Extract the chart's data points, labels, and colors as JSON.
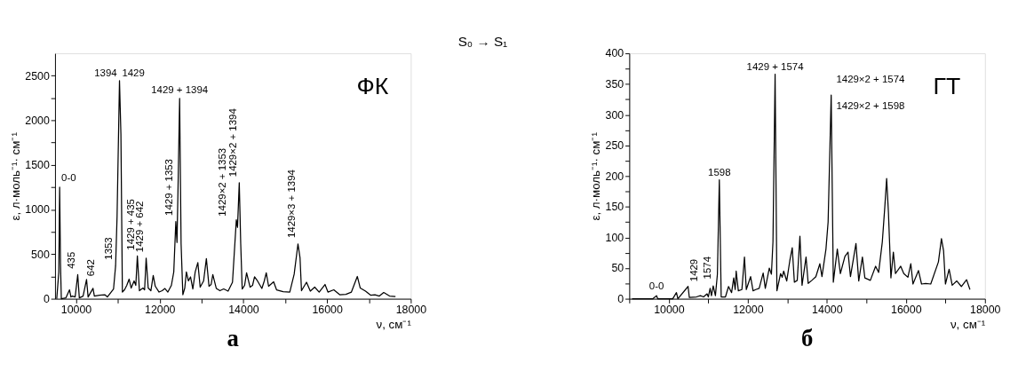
{
  "chart_data": [
    {
      "type": "line",
      "xlabel": "ν, см⁻¹",
      "ylabel": "ε, л·моль⁻¹· см⁻¹",
      "xlim": [
        9500,
        18000
      ],
      "ylim": [
        0,
        2750
      ],
      "xticks": [
        10000,
        {
          "value": 11000,
          "label": null
        },
        12000,
        {
          "value": 13000,
          "label": null
        },
        14000,
        {
          "value": 15000,
          "label": null
        },
        16000,
        {
          "value": 17000,
          "label": null
        },
        18000
      ],
      "yticks": [
        0,
        {
          "value": 250,
          "label": null
        },
        500,
        {
          "value": 750,
          "label": null
        },
        1000,
        {
          "value": 1250,
          "label": null
        },
        1500,
        {
          "value": 1750,
          "label": null
        },
        2000,
        {
          "value": 2250,
          "label": null
        },
        2500
      ],
      "x": [
        9540,
        9590,
        9610,
        9630,
        9650,
        9760,
        9846,
        9880,
        9916,
        9980,
        10042,
        10080,
        10170,
        10253,
        10290,
        10407,
        10440,
        10560,
        10688,
        10750,
        10898,
        10947,
        10982,
        11040,
        11074,
        11109,
        11160,
        11214,
        11270,
        11319,
        11389,
        11430,
        11467,
        11516,
        11600,
        11640,
        11677,
        11726,
        11790,
        11846,
        11895,
        11986,
        12060,
        12126,
        12196,
        12280,
        12337,
        12386,
        12414,
        12442,
        12477,
        12512,
        12554,
        12600,
        12638,
        12688,
        12737,
        12793,
        12849,
        12912,
        12968,
        13050,
        13116,
        13179,
        13230,
        13270,
        13354,
        13440,
        13530,
        13635,
        13740,
        13832,
        13860,
        13902,
        13937,
        13972,
        14030,
        14077,
        14161,
        14220,
        14267,
        14337,
        14442,
        14500,
        14547,
        14603,
        14723,
        14793,
        14950,
        15109,
        15214,
        15305,
        15354,
        15389,
        15509,
        15600,
        15705,
        15811,
        15951,
        16021,
        16161,
        16302,
        16450,
        16582,
        16723,
        16793,
        16919,
        17040,
        17144,
        17250,
        17354,
        17494,
        17635
      ],
      "series": [
        {
          "color": "#000000",
          "values": [
            0,
            300,
            1250,
            400,
            0,
            10,
            100,
            20,
            30,
            20,
            270,
            10,
            30,
            215,
            20,
            117,
            30,
            40,
            45,
            20,
            110,
            370,
            920,
            2445,
            1845,
            75,
            100,
            150,
            220,
            120,
            200,
            150,
            480,
            90,
            120,
            100,
            455,
            120,
            90,
            260,
            140,
            75,
            90,
            115,
            75,
            150,
            300,
            865,
            630,
            1320,
            2245,
            615,
            45,
            120,
            300,
            200,
            245,
            110,
            300,
            405,
            130,
            200,
            450,
            140,
            160,
            270,
            115,
            90,
            110,
            85,
            185,
            885,
            800,
            1300,
            615,
            110,
            150,
            290,
            130,
            150,
            245,
            200,
            115,
            200,
            290,
            140,
            190,
            100,
            80,
            75,
            275,
            615,
            460,
            90,
            185,
            85,
            130,
            75,
            160,
            75,
            100,
            45,
            50,
            75,
            250,
            120,
            85,
            40,
            45,
            30,
            70,
            30,
            25
          ]
        }
      ],
      "annotations": [
        {
          "text": "0-0",
          "x": 9610,
          "y": 1250
        },
        {
          "text": "435",
          "x": 10042,
          "y": 270
        },
        {
          "text": "642",
          "x": 10253,
          "y": 215
        },
        {
          "text": "1353",
          "x": 10947,
          "y": 370
        },
        {
          "text": "1394",
          "x": 11040,
          "y": 2445
        },
        {
          "text": "1429",
          "x": 11040,
          "y": 2445
        },
        {
          "text": "1429 + 1394",
          "x": 12477,
          "y": 2245
        },
        {
          "text": "1429 + 435",
          "x": 11467,
          "y": 480
        },
        {
          "text": "1429 + 642",
          "x": 11677,
          "y": 455
        },
        {
          "text": "1429 + 1353",
          "x": 12386,
          "y": 865
        },
        {
          "text": "1429×2 + 1353",
          "x": 13832,
          "y": 885
        },
        {
          "text": "1429×2 + 1394",
          "x": 13902,
          "y": 1300
        },
        {
          "text": "1429×3 + 1394",
          "x": 15305,
          "y": 615
        },
        "ФК",
        "а",
        "S₀ → S₁"
      ]
    },
    {
      "type": "line",
      "xlabel": "ν, см⁻¹",
      "ylabel": "ε, л·моль⁻¹· см⁻¹",
      "xlim": [
        9000,
        18000
      ],
      "ylim": [
        0,
        400
      ],
      "xticks": [
        {
          "value": 9000,
          "label": null
        },
        10000,
        {
          "value": 11000,
          "label": null
        },
        12000,
        {
          "value": 13000,
          "label": null
        },
        14000,
        {
          "value": 15000,
          "label": null
        },
        16000,
        {
          "value": 17000,
          "label": null
        },
        18000
      ],
      "yticks": [
        0,
        {
          "value": 25,
          "label": null
        },
        50,
        {
          "value": 75,
          "label": null
        },
        100,
        {
          "value": 125,
          "label": null
        },
        150,
        {
          "value": 175,
          "label": null
        },
        200,
        {
          "value": 225,
          "label": null
        },
        250,
        {
          "value": 275,
          "label": null
        },
        300,
        {
          "value": 325,
          "label": null
        },
        350,
        {
          "value": 375,
          "label": null
        },
        400
      ],
      "x": [
        9070,
        9600,
        9690,
        9720,
        10100,
        10194,
        10230,
        10488,
        10520,
        10700,
        10800,
        10880,
        10969,
        11000,
        11046,
        11080,
        11124,
        11180,
        11230,
        11279,
        11326,
        11434,
        11512,
        11550,
        11589,
        11643,
        11680,
        11705,
        11760,
        11850,
        11915,
        11961,
        12070,
        12132,
        12200,
        12287,
        12388,
        12442,
        12543,
        12597,
        12636,
        12690,
        12736,
        12829,
        12870,
        12907,
        12984,
        13062,
        13124,
        13178,
        13250,
        13318,
        13372,
        13473,
        13527,
        13620,
        13721,
        13822,
        13876,
        13977,
        14031,
        14109,
        14163,
        14264,
        14341,
        14457,
        14535,
        14597,
        14736,
        14806,
        14899,
        14961,
        15100,
        15233,
        15310,
        15403,
        15465,
        15512,
        15558,
        15620,
        15682,
        15736,
        15868,
        15946,
        16050,
        16124,
        16178,
        16318,
        16395,
        16500,
        16628,
        16822,
        16899,
        16953,
        17000,
        17093,
        17171,
        17287,
        17403,
        17535,
        17620
      ],
      "series": [
        {
          "color": "#000000",
          "values": [
            0,
            0,
            5,
            0,
            0,
            10,
            0,
            20,
            2,
            3,
            5,
            3,
            8,
            3,
            17,
            5,
            21,
            5,
            40,
            194,
            3,
            3,
            20,
            15,
            10,
            34,
            15,
            45,
            13,
            15,
            68,
            15,
            36,
            13,
            15,
            17,
            42,
            17,
            50,
            40,
            93,
            366,
            13,
            41,
            35,
            45,
            29,
            62,
            83,
            27,
            30,
            102,
            22,
            68,
            25,
            30,
            36,
            57,
            36,
            81,
            125,
            332,
            27,
            81,
            41,
            69,
            76,
            36,
            90,
            29,
            68,
            34,
            30,
            53,
            43,
            93,
            149,
            196,
            140,
            34,
            76,
            41,
            53,
            41,
            35,
            57,
            24,
            46,
            24,
            25,
            24,
            60,
            98,
            78,
            24,
            48,
            22,
            29,
            20,
            31,
            15
          ]
        }
      ],
      "annotations": [
        {
          "text": "0-0",
          "x": 9690,
          "y": 5
        },
        {
          "text": "1429",
          "x": 11046,
          "y": 17
        },
        {
          "text": "1574",
          "x": 11124,
          "y": 21
        },
        {
          "text": "1598",
          "x": 11279,
          "y": 194
        },
        {
          "text": "1429 + 1574",
          "x": 12690,
          "y": 366
        },
        {
          "text": "1429×2 + 1574",
          "x": 14109,
          "y": 332
        },
        {
          "text": "1429×2 + 1598",
          "x": 14109,
          "y": 332
        },
        "ГТ",
        "б"
      ]
    }
  ]
}
